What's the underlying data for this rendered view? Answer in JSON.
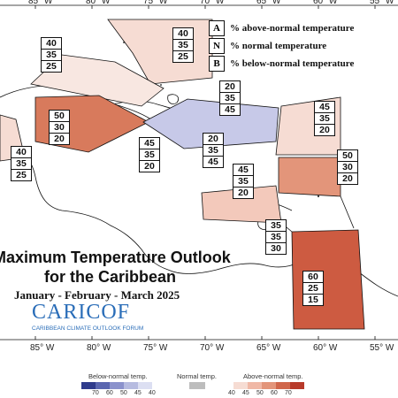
{
  "title_line1": "Maximum Temperature Outlook",
  "title_line2": "for the Caribbean",
  "subtitle": "January - February - March 2025",
  "logo": {
    "main": "CARICOF",
    "sub": "CARIBBEAN CLIMATE OUTLOOK FORUM"
  },
  "key": [
    {
      "letter": "A",
      "text": "% above-normal temperature"
    },
    {
      "letter": "N",
      "text": "% normal temperature"
    },
    {
      "letter": "B",
      "text": "% below-normal temperature"
    }
  ],
  "longitudes": [
    "85° W",
    "80° W",
    "75° W",
    "70° W",
    "65° W",
    "60° W",
    "55° W"
  ],
  "forecast_regions": [
    {
      "name": "bahamas",
      "above": 40,
      "normal": 35,
      "below": 25,
      "color": "#f6dcd3"
    },
    {
      "name": "cuba-north",
      "above": 40,
      "normal": 35,
      "below": 25,
      "color": "#f8e7e1"
    },
    {
      "name": "cayman-jamaica-west",
      "above": 50,
      "normal": 30,
      "below": 20,
      "color": "#d87a5c"
    },
    {
      "name": "hispaniola",
      "above": 20,
      "normal": 35,
      "below": 45,
      "color": "#c7c9e8"
    },
    {
      "name": "jamaica-south",
      "above": 45,
      "normal": 35,
      "below": 20,
      "color": "#ffffff"
    },
    {
      "name": "puerto-rico",
      "above": 20,
      "normal": 35,
      "below": 45,
      "color": "#ffffff"
    },
    {
      "name": "leeward-islands",
      "above": 45,
      "normal": 35,
      "below": 20,
      "color": "#f6dcd3"
    },
    {
      "name": "windward-islands",
      "above": 50,
      "normal": 30,
      "below": 20,
      "color": "#e3957a"
    },
    {
      "name": "abc-islands",
      "above": 45,
      "normal": 35,
      "below": 20,
      "color": "#f3c9bb"
    },
    {
      "name": "trinidad",
      "above": 35,
      "normal": 35,
      "below": 30,
      "color": "#ffffff"
    },
    {
      "name": "guianas",
      "above": 60,
      "normal": 25,
      "below": 15,
      "color": "#cd5b41"
    },
    {
      "name": "central-america-west",
      "above": 40,
      "normal": 35,
      "below": 25,
      "color": "#f6dcd3"
    }
  ],
  "color_scale": {
    "below_label": "Below-normal temp.",
    "normal_label": "Normal temp.",
    "above_label": "Above-normal temp.",
    "below_ticks": [
      "70",
      "60",
      "50",
      "45",
      "40"
    ],
    "normal_ticks": [],
    "above_ticks": [
      "40",
      "45",
      "50",
      "60",
      "70"
    ],
    "below_colors": [
      "#2f3b8c",
      "#5a66b0",
      "#8b92cc",
      "#b6bbe0",
      "#dcdff2"
    ],
    "normal_color": "#bdbdbd",
    "above_colors": [
      "#f6dcd3",
      "#f0b8a6",
      "#e3957a",
      "#d0664a",
      "#b83a2a"
    ]
  }
}
